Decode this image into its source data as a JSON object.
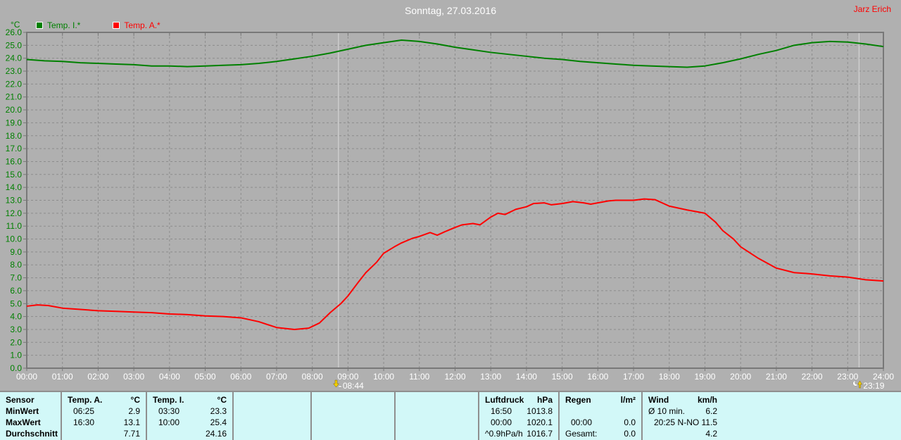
{
  "window": {
    "title": "Sonntag, 27.03.2016",
    "user": "Jarz Erich"
  },
  "chart_data": {
    "type": "line",
    "title": "Sonntag, 27.03.2016",
    "ylabel": "°C",
    "ylim": [
      0,
      26
    ],
    "ytick_step": 1.0,
    "xlim": [
      0,
      24
    ],
    "xticks": [
      "00:00",
      "01:00",
      "02:00",
      "03:00",
      "04:00",
      "05:00",
      "06:00",
      "07:00",
      "08:00",
      "09:00",
      "10:00",
      "11:00",
      "12:00",
      "13:00",
      "14:00",
      "15:00",
      "16:00",
      "17:00",
      "18:00",
      "19:00",
      "20:00",
      "21:00",
      "22:00",
      "23:00",
      "24:00"
    ],
    "grid": true,
    "grid_color": "#8c8c8c",
    "background_color": "#b0b0b0",
    "legend_position": "top-left",
    "series": [
      {
        "name": "Temp. I.*",
        "color": "#008000",
        "points": [
          [
            0,
            23.9
          ],
          [
            0.5,
            23.8
          ],
          [
            1,
            23.75
          ],
          [
            1.5,
            23.65
          ],
          [
            2,
            23.6
          ],
          [
            2.5,
            23.55
          ],
          [
            3,
            23.5
          ],
          [
            3.5,
            23.4
          ],
          [
            4,
            23.4
          ],
          [
            4.5,
            23.35
          ],
          [
            5,
            23.4
          ],
          [
            5.5,
            23.45
          ],
          [
            6,
            23.5
          ],
          [
            6.5,
            23.6
          ],
          [
            7,
            23.75
          ],
          [
            7.5,
            23.95
          ],
          [
            8,
            24.15
          ],
          [
            8.5,
            24.4
          ],
          [
            9,
            24.7
          ],
          [
            9.5,
            25.0
          ],
          [
            10,
            25.2
          ],
          [
            10.5,
            25.4
          ],
          [
            11,
            25.3
          ],
          [
            11.5,
            25.1
          ],
          [
            12,
            24.85
          ],
          [
            12.5,
            24.65
          ],
          [
            13,
            24.45
          ],
          [
            13.5,
            24.3
          ],
          [
            14,
            24.15
          ],
          [
            14.5,
            24.0
          ],
          [
            15,
            23.9
          ],
          [
            15.5,
            23.75
          ],
          [
            16,
            23.65
          ],
          [
            16.5,
            23.55
          ],
          [
            17,
            23.45
          ],
          [
            17.5,
            23.4
          ],
          [
            18,
            23.35
          ],
          [
            18.5,
            23.3
          ],
          [
            19,
            23.4
          ],
          [
            19.5,
            23.65
          ],
          [
            20,
            23.95
          ],
          [
            20.5,
            24.3
          ],
          [
            21,
            24.6
          ],
          [
            21.5,
            25.0
          ],
          [
            22,
            25.2
          ],
          [
            22.5,
            25.3
          ],
          [
            23,
            25.25
          ],
          [
            23.5,
            25.1
          ],
          [
            24,
            24.9
          ]
        ]
      },
      {
        "name": "Temp. A.*",
        "color": "#ff0000",
        "points": [
          [
            0,
            4.8
          ],
          [
            0.3,
            4.9
          ],
          [
            0.6,
            4.85
          ],
          [
            1,
            4.65
          ],
          [
            1.5,
            4.55
          ],
          [
            2,
            4.45
          ],
          [
            2.5,
            4.4
          ],
          [
            3,
            4.35
          ],
          [
            3.5,
            4.3
          ],
          [
            4,
            4.2
          ],
          [
            4.5,
            4.15
          ],
          [
            5,
            4.05
          ],
          [
            5.5,
            4.0
          ],
          [
            6,
            3.9
          ],
          [
            6.5,
            3.6
          ],
          [
            7,
            3.15
          ],
          [
            7.5,
            3.0
          ],
          [
            7.9,
            3.1
          ],
          [
            8.2,
            3.5
          ],
          [
            8.5,
            4.3
          ],
          [
            8.8,
            5.0
          ],
          [
            9,
            5.6
          ],
          [
            9.3,
            6.7
          ],
          [
            9.5,
            7.4
          ],
          [
            9.8,
            8.2
          ],
          [
            10,
            8.9
          ],
          [
            10.3,
            9.4
          ],
          [
            10.5,
            9.7
          ],
          [
            10.8,
            10.05
          ],
          [
            11,
            10.2
          ],
          [
            11.3,
            10.5
          ],
          [
            11.5,
            10.3
          ],
          [
            11.7,
            10.55
          ],
          [
            12,
            10.9
          ],
          [
            12.2,
            11.1
          ],
          [
            12.5,
            11.2
          ],
          [
            12.7,
            11.1
          ],
          [
            13,
            11.7
          ],
          [
            13.2,
            12.0
          ],
          [
            13.4,
            11.9
          ],
          [
            13.7,
            12.3
          ],
          [
            14,
            12.5
          ],
          [
            14.2,
            12.75
          ],
          [
            14.5,
            12.8
          ],
          [
            14.7,
            12.65
          ],
          [
            15,
            12.75
          ],
          [
            15.3,
            12.9
          ],
          [
            15.6,
            12.8
          ],
          [
            15.8,
            12.7
          ],
          [
            16,
            12.8
          ],
          [
            16.3,
            12.95
          ],
          [
            16.5,
            13.0
          ],
          [
            17,
            13.0
          ],
          [
            17.3,
            13.1
          ],
          [
            17.6,
            13.05
          ],
          [
            18,
            12.55
          ],
          [
            18.5,
            12.25
          ],
          [
            18.8,
            12.1
          ],
          [
            19,
            12.0
          ],
          [
            19.3,
            11.3
          ],
          [
            19.5,
            10.65
          ],
          [
            19.8,
            10.0
          ],
          [
            20,
            9.4
          ],
          [
            20.5,
            8.5
          ],
          [
            21,
            7.75
          ],
          [
            21.5,
            7.4
          ],
          [
            22,
            7.3
          ],
          [
            22.5,
            7.15
          ],
          [
            23,
            7.05
          ],
          [
            23.5,
            6.85
          ],
          [
            24,
            6.75
          ]
        ]
      }
    ],
    "annotations": [
      {
        "x": 8.733,
        "label": "08:44",
        "icon": "moonset-icon"
      },
      {
        "x": 23.317,
        "label": "23:19",
        "icon": "moonrise-icon"
      }
    ]
  },
  "table": {
    "row_labels": [
      "Sensor",
      "MinWert",
      "MaxWert",
      "Durchschnitt"
    ],
    "temp_a": {
      "name": "Temp. A.",
      "unit": "°C",
      "min_time": "06:25",
      "min": "2.9",
      "max_time": "16:30",
      "max": "13.1",
      "avg": "7.71"
    },
    "temp_i": {
      "name": "Temp. I.",
      "unit": "°C",
      "min_time": "03:30",
      "min": "23.3",
      "max_time": "10:00",
      "max": "25.4",
      "avg": "24.16"
    },
    "luftdruck": {
      "name": "Luftdruck",
      "unit": "hPa",
      "min_time": "16:50",
      "min": "1013.8",
      "max_time": "00:00",
      "max": "1020.1",
      "trend": "^0.9hPa/h",
      "avg": "1016.7"
    },
    "regen": {
      "name": "Regen",
      "unit": "l/m²",
      "max_time": "00:00",
      "max": "0.0",
      "total_label": "Gesamt:",
      "total": "0.0"
    },
    "wind": {
      "name": "Wind",
      "unit": "km/h",
      "avg_label": "Ø 10 min.",
      "avg_value": "6.2",
      "max_time": "20:25",
      "max_value": "N-NO 11.5",
      "last_value": "4.2"
    }
  }
}
